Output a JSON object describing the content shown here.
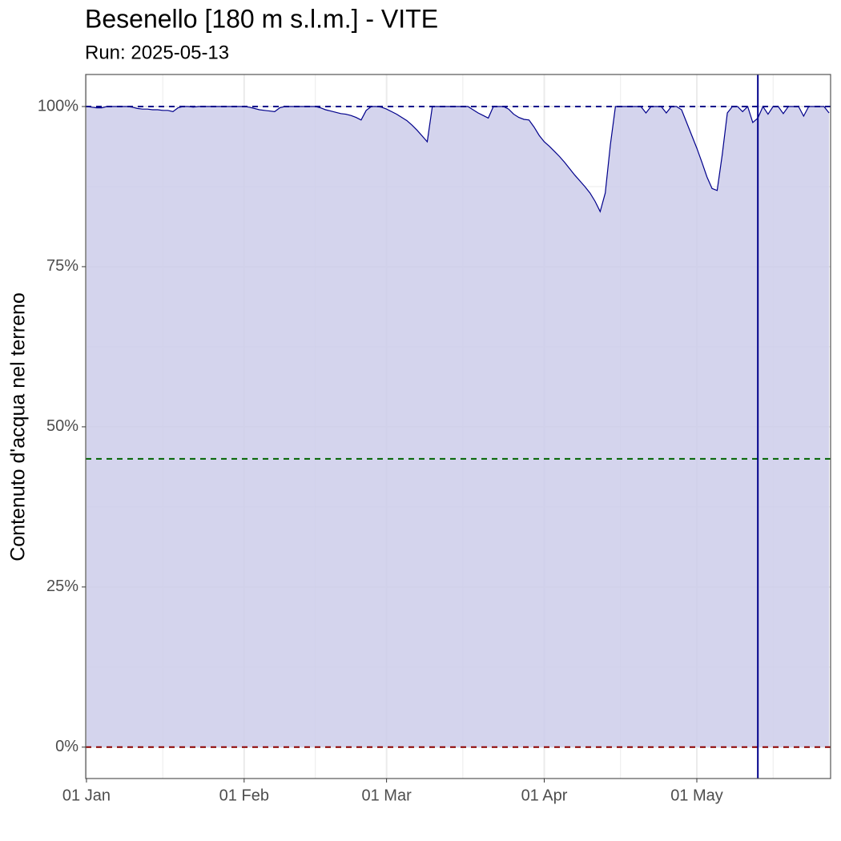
{
  "chart_data": {
    "type": "area",
    "title": "Besenello [180 m s.l.m.] - VITE",
    "subtitle": "Run: 2025-05-13",
    "y_label": "Contenuto d'acqua nel terreno",
    "x": [
      "01-01",
      "01-02",
      "01-03",
      "01-04",
      "01-05",
      "01-06",
      "01-07",
      "01-08",
      "01-09",
      "01-10",
      "01-11",
      "01-12",
      "01-13",
      "01-14",
      "01-15",
      "01-16",
      "01-17",
      "01-18",
      "01-19",
      "01-20",
      "01-21",
      "01-22",
      "01-23",
      "01-24",
      "01-25",
      "01-26",
      "01-27",
      "01-28",
      "01-29",
      "01-30",
      "01-31",
      "02-01",
      "02-02",
      "02-03",
      "02-04",
      "02-05",
      "02-06",
      "02-07",
      "02-08",
      "02-09",
      "02-10",
      "02-11",
      "02-12",
      "02-13",
      "02-14",
      "02-15",
      "02-16",
      "02-17",
      "02-18",
      "02-19",
      "02-20",
      "02-21",
      "02-22",
      "02-23",
      "02-24",
      "02-25",
      "02-26",
      "02-27",
      "02-28",
      "03-01",
      "03-02",
      "03-03",
      "03-04",
      "03-05",
      "03-06",
      "03-07",
      "03-08",
      "03-09",
      "03-10",
      "03-11",
      "03-12",
      "03-13",
      "03-14",
      "03-15",
      "03-16",
      "03-17",
      "03-18",
      "03-19",
      "03-20",
      "03-21",
      "03-22",
      "03-23",
      "03-24",
      "03-25",
      "03-26",
      "03-27",
      "03-28",
      "03-29",
      "03-30",
      "03-31",
      "04-01",
      "04-02",
      "04-03",
      "04-04",
      "04-05",
      "04-06",
      "04-07",
      "04-08",
      "04-09",
      "04-10",
      "04-11",
      "04-12",
      "04-13",
      "04-14",
      "04-15",
      "04-16",
      "04-17",
      "04-18",
      "04-19",
      "04-20",
      "04-21",
      "04-22",
      "04-23",
      "04-24",
      "04-25",
      "04-26",
      "04-27",
      "04-28",
      "04-29",
      "04-30",
      "05-01",
      "05-02",
      "05-03",
      "05-04",
      "05-05",
      "05-06",
      "05-07",
      "05-08",
      "05-09",
      "05-10",
      "05-11",
      "05-12",
      "05-13",
      "05-14",
      "05-15",
      "05-16",
      "05-17",
      "05-18",
      "05-19",
      "05-20",
      "05-21",
      "05-22",
      "05-23",
      "05-24",
      "05-25",
      "05-26",
      "05-27"
    ],
    "series": [
      {
        "color": "#00008b",
        "fill": "#ccccea",
        "values": [
          100,
          99.9,
          99.8,
          99.8,
          100,
          100,
          100,
          100,
          100,
          99.9,
          99.7,
          99.6,
          99.6,
          99.5,
          99.5,
          99.4,
          99.4,
          99.2,
          99.8,
          100,
          100,
          99.9,
          100,
          100,
          100,
          100,
          100,
          100,
          100,
          100,
          100,
          100,
          99.9,
          99.7,
          99.5,
          99.4,
          99.3,
          99.2,
          99.8,
          100,
          100,
          100,
          100,
          100,
          100,
          100,
          99.8,
          99.5,
          99.3,
          99.1,
          98.9,
          98.8,
          98.6,
          98.3,
          97.9,
          99.4,
          100,
          100,
          99.9,
          99.6,
          99.2,
          98.8,
          98.3,
          97.8,
          97.1,
          96.3,
          95.4,
          94.5,
          100,
          100,
          100,
          100,
          100,
          100,
          100,
          100,
          99.5,
          99.0,
          98.6,
          98.2,
          100,
          100,
          100,
          99.6,
          98.8,
          98.3,
          98.0,
          97.9,
          96.8,
          95.5,
          94.5,
          93.8,
          93.0,
          92.2,
          91.3,
          90.3,
          89.3,
          88.4,
          87.5,
          86.5,
          85.2,
          83.6,
          86.5,
          94,
          100,
          100,
          100,
          100,
          100,
          100,
          99,
          100,
          100,
          100,
          99,
          100,
          100,
          99.5,
          97.5,
          95.5,
          93.5,
          91.3,
          89.0,
          87.2,
          86.9,
          92.5,
          99,
          100,
          100,
          99.2,
          100,
          97.5,
          98.2,
          100,
          98.8,
          100,
          100,
          98.9,
          100,
          100,
          100,
          98.5,
          100,
          100,
          100,
          100,
          99
        ]
      }
    ],
    "hlines": [
      {
        "value": 100,
        "color": "#00008b"
      },
      {
        "value": 45,
        "color": "#006400"
      },
      {
        "value": 0,
        "color": "#8b0000"
      }
    ],
    "vline": {
      "x": "05-13",
      "color": "#00008b"
    },
    "xlim": [
      "01-01",
      "05-27"
    ],
    "xticks": [
      {
        "value": "01-01",
        "label": "01 Jan"
      },
      {
        "value": "02-01",
        "label": "01 Feb"
      },
      {
        "value": "03-01",
        "label": "01 Mar"
      },
      {
        "value": "04-01",
        "label": "01 Apr"
      },
      {
        "value": "05-01",
        "label": "01 May"
      }
    ],
    "x_minor_ticks": [
      "01-16",
      "02-15",
      "03-16",
      "04-16",
      "05-16"
    ],
    "ylim": [
      -4.9,
      105
    ],
    "yticks": [
      {
        "value": 0,
        "label": "0%"
      },
      {
        "value": 25,
        "label": "25%"
      },
      {
        "value": 50,
        "label": "50%"
      },
      {
        "value": 75,
        "label": "75%"
      },
      {
        "value": 100,
        "label": "100%"
      }
    ],
    "y_minor_ticks": [
      12.5,
      37.5,
      62.5,
      87.5
    ],
    "grid": true
  }
}
